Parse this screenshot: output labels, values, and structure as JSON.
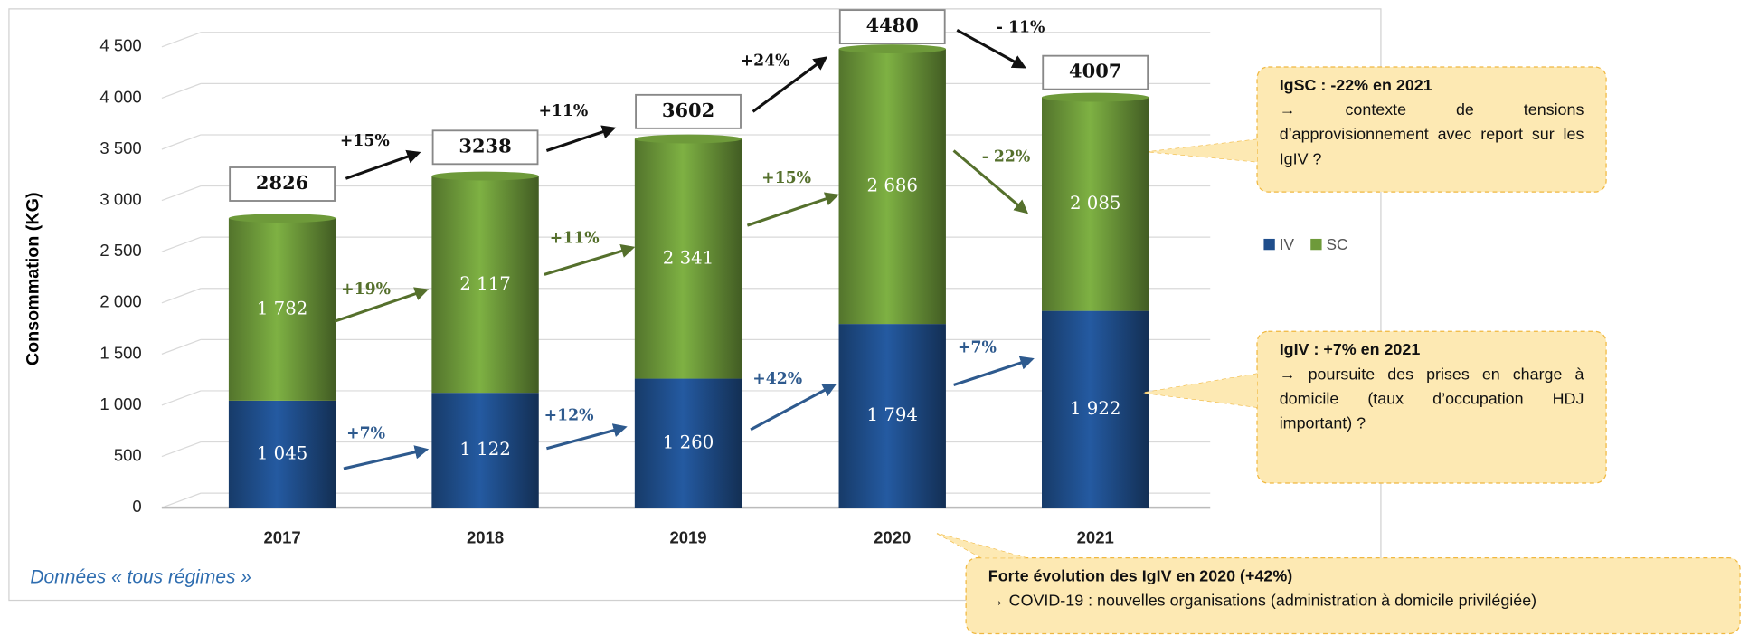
{
  "chart_data": {
    "type": "bar",
    "stacked": true,
    "y_label": "Consommation (KG)",
    "categories": [
      "2017",
      "2018",
      "2019",
      "2020",
      "2021"
    ],
    "series": [
      {
        "name": "IV",
        "color": "#1f4e8c",
        "values": [
          1045,
          1122,
          1260,
          1794,
          1922
        ],
        "value_labels": [
          "1 045",
          "1 122",
          "1 260",
          "1 794",
          "1 922"
        ],
        "changes": [
          "+7%",
          "+12%",
          "+42%",
          "+7%"
        ]
      },
      {
        "name": "SC",
        "color": "#6e9a3a",
        "values": [
          1782,
          2117,
          2341,
          2686,
          2085
        ],
        "value_labels": [
          "1 782",
          "2 117",
          "2 341",
          "2 686",
          "2 085"
        ],
        "changes": [
          "+19%",
          "+11%",
          "+15%",
          "- 22%"
        ]
      }
    ],
    "totals": [
      2826,
      3238,
      3602,
      4480,
      4007
    ],
    "total_changes": [
      "+15%",
      "+11%",
      "+24%",
      "- 11%"
    ],
    "ylim": [
      0,
      4500
    ],
    "yticks": [
      0,
      500,
      {
        "value": 1000,
        "label": "1 000"
      },
      {
        "value": 1500,
        "label": "1 500"
      },
      {
        "value": 2000,
        "label": "2 000"
      },
      {
        "value": 2500,
        "label": "2 500"
      },
      {
        "value": 3000,
        "label": "3 000"
      },
      {
        "value": 3500,
        "label": "3 500"
      },
      {
        "value": 4000,
        "label": "4 000"
      },
      {
        "value": 4500,
        "label": "4 500"
      }
    ],
    "grid": true,
    "legend": "right",
    "source_note": "Données « tous régimes »",
    "callouts": [
      {
        "title": "IgSC : -22% en 2021",
        "text": "→ contexte de tensions d’approvisionnement avec report sur les IgIV ?"
      },
      {
        "title": "IgIV : +7% en 2021",
        "text": "→ poursuite des prises en charge à domicile (taux d’occupation HDJ important) ?"
      },
      {
        "title": "Forte évolution des IgIV en 2020 (+42%)",
        "text": "→ COVID-19 : nouvelles organisations (administration à domicile privilégiée)"
      }
    ]
  }
}
